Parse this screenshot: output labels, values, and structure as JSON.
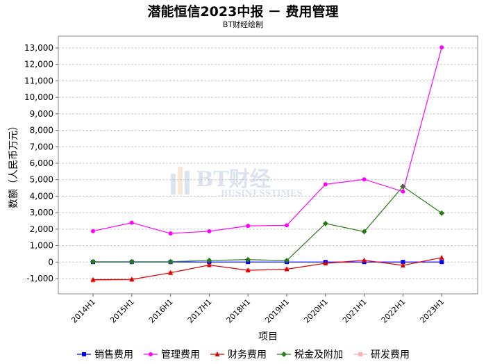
{
  "title": "潜能恒信2023中报 － 费用管理",
  "subtitle": "BT财经绘制",
  "watermark": {
    "cn": "BT财经",
    "en": "BUSINESSTIMES"
  },
  "chart_data": {
    "type": "line",
    "xlabel": "项目",
    "ylabel": "数额（人民币万元）",
    "ylim": [
      -1000,
      13000
    ],
    "y_ticks": [
      -1000,
      0,
      1000,
      2000,
      3000,
      4000,
      5000,
      6000,
      7000,
      8000,
      9000,
      10000,
      11000,
      12000,
      13000
    ],
    "y_tick_labels": [
      "-1,000",
      "0",
      "1,000",
      "2,000",
      "3,000",
      "4,000",
      "5,000",
      "6,000",
      "7,000",
      "8,000",
      "9,000",
      "10,000",
      "11,000",
      "12,000",
      "13,000"
    ],
    "grid": true,
    "legend_position": "bottom",
    "categories": [
      "2014H1",
      "2015H1",
      "2016H1",
      "2017H1",
      "2018H1",
      "2019H1",
      "2020H1",
      "2021H1",
      "2022H1",
      "2023H1"
    ],
    "series": [
      {
        "name": "销售费用",
        "color": "#0000ff",
        "marker": "square",
        "values": [
          5,
          5,
          5,
          5,
          5,
          5,
          5,
          5,
          5,
          5
        ]
      },
      {
        "name": "管理费用",
        "color": "#ff00ff",
        "marker": "circle",
        "values": [
          1880,
          2390,
          1740,
          1870,
          2200,
          2230,
          4720,
          5020,
          4280,
          13030
        ]
      },
      {
        "name": "财务费用",
        "color": "#dd0000",
        "marker": "triangle",
        "values": [
          -1070,
          -1050,
          -650,
          -180,
          -500,
          -430,
          -70,
          110,
          -200,
          270
        ]
      },
      {
        "name": "税金及附加",
        "color": "#2a7a1a",
        "marker": "diamond",
        "values": [
          20,
          20,
          20,
          100,
          150,
          90,
          2340,
          1850,
          4590,
          2970
        ]
      },
      {
        "name": "研发费用",
        "color": "#ffb0b0",
        "marker": "square",
        "values": [
          -1120,
          -1080,
          -650,
          -180,
          -500,
          -430,
          -70,
          0,
          0,
          0
        ]
      }
    ]
  }
}
